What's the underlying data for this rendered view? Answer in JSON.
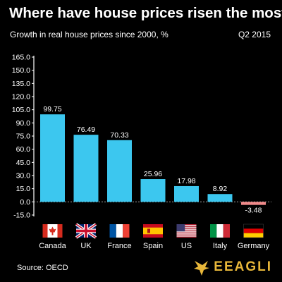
{
  "header": {
    "title": "Where have house prices risen the most?",
    "subtitle": "Growth in real house prices since 2000, %",
    "period": "Q2 2015"
  },
  "footer": {
    "source": "Source: OECD",
    "brand": "EEAGLI"
  },
  "colors": {
    "bar": "#3cc7ef",
    "negative_bar": "#f08a8a",
    "brand": "#e8b73a"
  },
  "chart_data": {
    "type": "bar",
    "title": "Where have house prices risen the most?",
    "subtitle": "Growth in real house prices since 2000, %",
    "categories": [
      "Canada",
      "UK",
      "France",
      "Spain",
      "US",
      "Italy",
      "Germany"
    ],
    "values": [
      99.75,
      76.49,
      70.33,
      25.96,
      17.98,
      8.92,
      -3.48
    ],
    "value_labels": [
      "99.75",
      "76.49",
      "70.33",
      "25.96",
      "17.98",
      "8.92",
      "-3.48"
    ],
    "flags": [
      "canada-flag-icon",
      "uk-flag-icon",
      "france-flag-icon",
      "spain-flag-icon",
      "us-flag-icon",
      "italy-flag-icon",
      "germany-flag-icon"
    ],
    "yticks": [
      "165.0",
      "150.0",
      "135.0",
      "120.0",
      "105.0",
      "90.0",
      "75.0",
      "60.0",
      "45.0",
      "30.0",
      "15.0",
      "0.0",
      "-15.0"
    ],
    "ylim": [
      -15,
      165
    ],
    "xlabel": "",
    "ylabel": "",
    "grid": false,
    "legend": "none"
  }
}
